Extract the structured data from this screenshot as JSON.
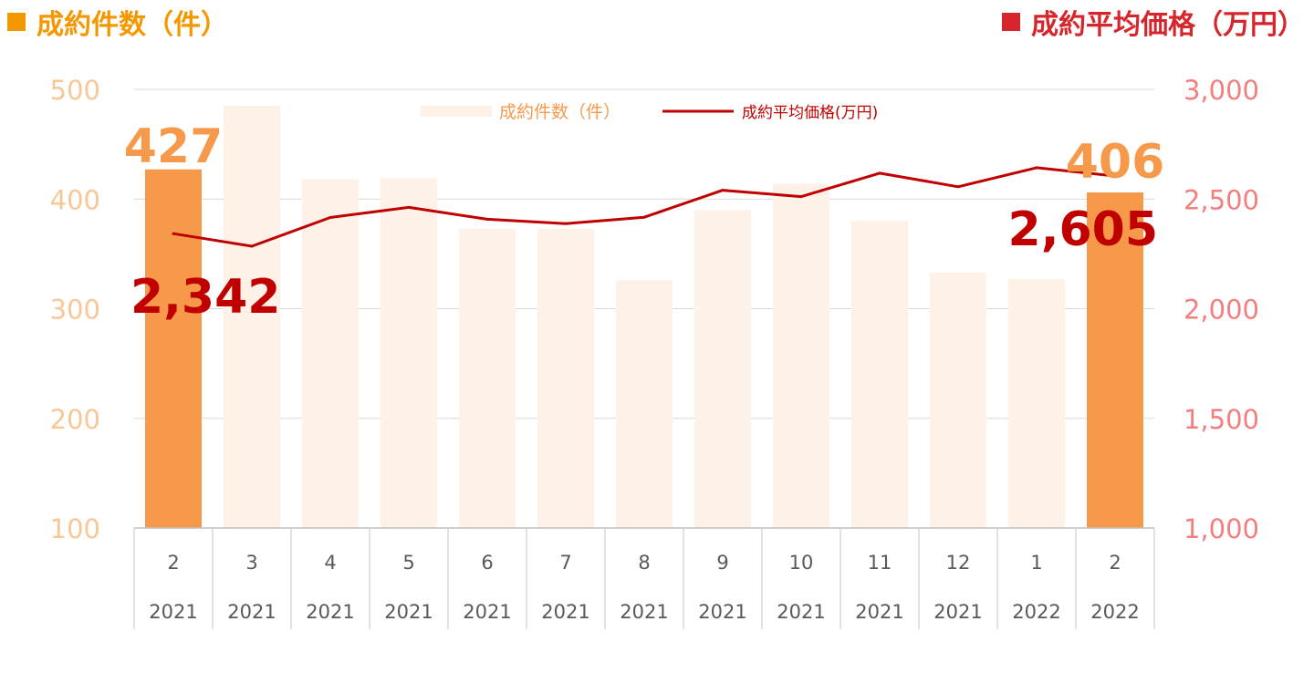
{
  "header": {
    "left_title": "成約件数（件）",
    "right_title": "成約平均価格（万円）"
  },
  "colors": {
    "count_header": "#F39800",
    "price_header": "#D7262B",
    "highlight_bar": "#F6994A",
    "muted_bar": "#FDF1E8",
    "line": "#C00000",
    "left_axis_text": "#F8C797",
    "right_axis_text": "#F47E7E",
    "grid": "#D9D9D9",
    "category_text": "#595959",
    "count_label": "#F6994A",
    "price_label": "#C00000"
  },
  "chart_data": {
    "type": "bar+line",
    "categories": [
      "2",
      "3",
      "4",
      "5",
      "6",
      "7",
      "8",
      "9",
      "10",
      "11",
      "12",
      "1",
      "2"
    ],
    "years": [
      "2021",
      "2021",
      "2021",
      "2021",
      "2021",
      "2021",
      "2021",
      "2021",
      "2021",
      "2021",
      "2021",
      "2022",
      "2022"
    ],
    "series": [
      {
        "name": "成約件数(件)",
        "type": "bar",
        "axis": "left",
        "values": [
          427,
          485,
          418,
          419,
          373,
          373,
          326,
          390,
          414,
          380,
          333,
          327,
          406
        ],
        "highlighted": [
          0,
          12
        ]
      },
      {
        "name": "成約平均価格(万円)",
        "type": "line",
        "axis": "right",
        "values": [
          2342,
          2285,
          2416,
          2462,
          2408,
          2388,
          2417,
          2540,
          2511,
          2618,
          2556,
          2643,
          2605
        ]
      }
    ],
    "left_axis": {
      "ylim": [
        100,
        500
      ],
      "ticks": [
        "100",
        "200",
        "300",
        "400",
        "500"
      ]
    },
    "right_axis": {
      "ylim": [
        1000,
        3000
      ],
      "ticks": [
        "1,000",
        "1,500",
        "2,000",
        "2,500",
        "3,000"
      ]
    },
    "annotations": {
      "first_count": "427",
      "last_count": "406",
      "first_price": "2,342",
      "last_price": "2,605"
    },
    "legend": {
      "bar_label": "成約件数（件）",
      "line_label": "成約平均価格(万円)",
      "position": "top-center"
    },
    "grid": true
  }
}
